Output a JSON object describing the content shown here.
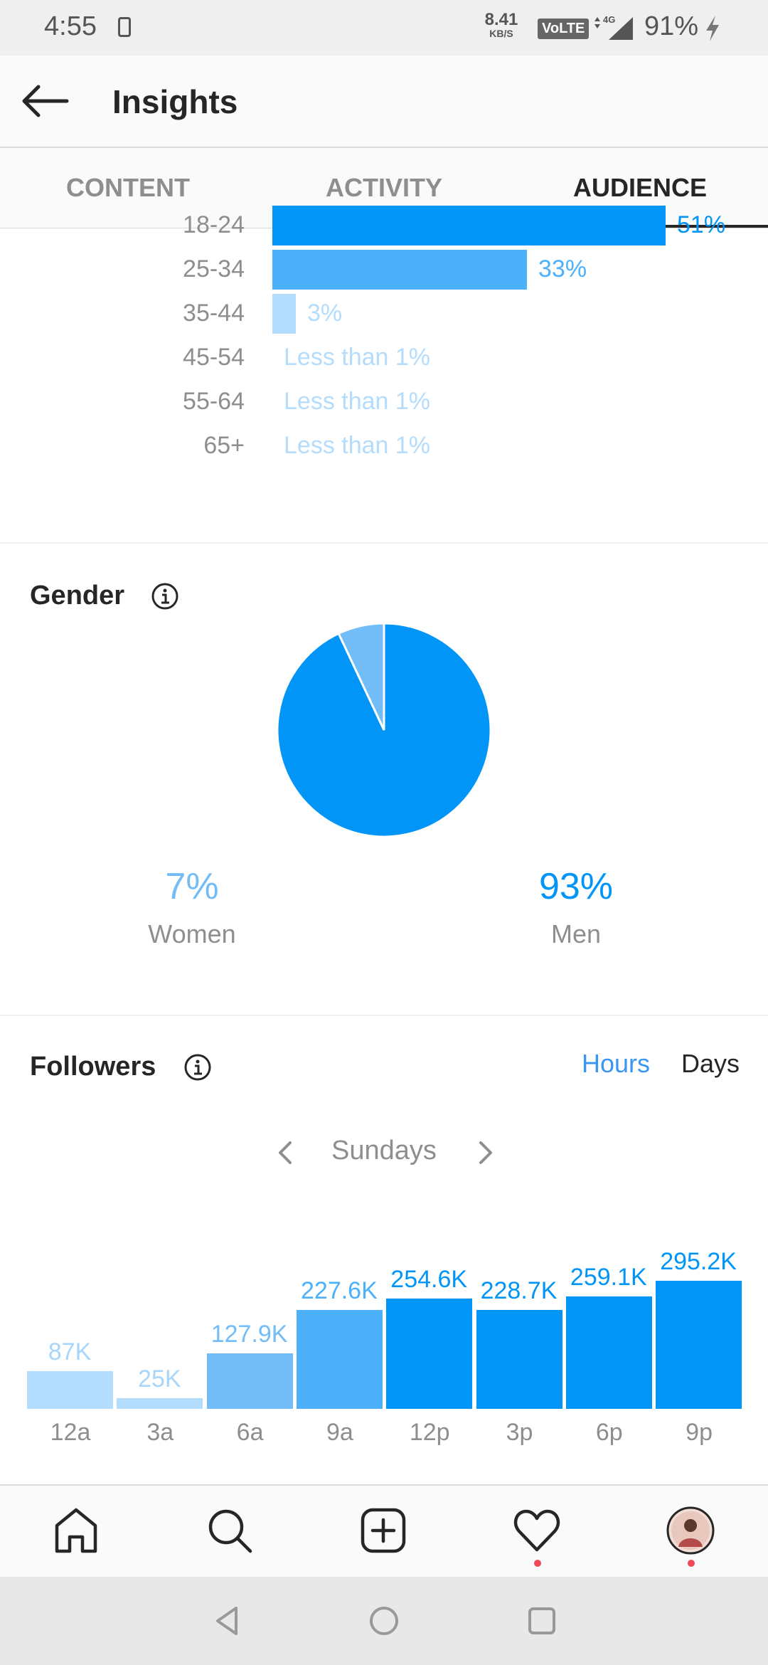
{
  "status": {
    "time": "4:55",
    "speed_value": "8.41",
    "speed_unit": "KB/S",
    "volte": "VoLTE",
    "network": "4G",
    "battery": "91%"
  },
  "header": {
    "title": "Insights",
    "back_icon": "back-arrow-icon"
  },
  "tabs": [
    {
      "label": "CONTENT",
      "active": false
    },
    {
      "label": "ACTIVITY",
      "active": false
    },
    {
      "label": "AUDIENCE",
      "active": true
    }
  ],
  "age_ranges": [
    {
      "range": "18-24",
      "value": "51%",
      "fraction": 0.51,
      "color": "#0095f6",
      "label_color": "#0095f6"
    },
    {
      "range": "25-34",
      "value": "33%",
      "fraction": 0.33,
      "color": "#4cb0fb",
      "label_color": "#4cb0fb"
    },
    {
      "range": "35-44",
      "value": "3%",
      "fraction": 0.03,
      "color": "#b3dcfd",
      "label_color": "#b3dcfd"
    },
    {
      "range": "45-54",
      "value": "Less than 1%",
      "fraction": 0,
      "color": "#b3dcfd",
      "label_color": "#b3dcfd"
    },
    {
      "range": "55-64",
      "value": "Less than 1%",
      "fraction": 0,
      "color": "#b3dcfd",
      "label_color": "#b3dcfd"
    },
    {
      "range": "65+",
      "value": "Less than 1%",
      "fraction": 0,
      "color": "#b3dcfd",
      "label_color": "#b3dcfd"
    }
  ],
  "gender": {
    "title": "Gender",
    "women": {
      "value": "7%",
      "label": "Women",
      "fraction": 0.07,
      "color": "#72bdf7"
    },
    "men": {
      "value": "93%",
      "label": "Men",
      "fraction": 0.93,
      "color": "#0095f6"
    }
  },
  "followers": {
    "title": "Followers",
    "toggle_hours": "Hours",
    "toggle_days": "Days",
    "day": "Sundays"
  },
  "chart_data": {
    "type": "bar",
    "categories": [
      "12a",
      "3a",
      "6a",
      "9a",
      "12p",
      "3p",
      "6p",
      "9p"
    ],
    "values": [
      87000,
      25000,
      127900,
      227600,
      254600,
      228700,
      259100,
      295200
    ],
    "labels": [
      "87K",
      "25K",
      "127.9K",
      "227.6K",
      "254.6K",
      "228.7K",
      "259.1K",
      "295.2K"
    ],
    "colors": [
      "#b3dcfd",
      "#b3dcfd",
      "#72bdf7",
      "#4cb0fb",
      "#0095f6",
      "#0095f6",
      "#0095f6",
      "#0095f6"
    ],
    "ylim": [
      0,
      295200
    ]
  },
  "nav": [
    "home-icon",
    "search-icon",
    "new-post-icon",
    "activity-heart-icon",
    "profile-avatar"
  ]
}
